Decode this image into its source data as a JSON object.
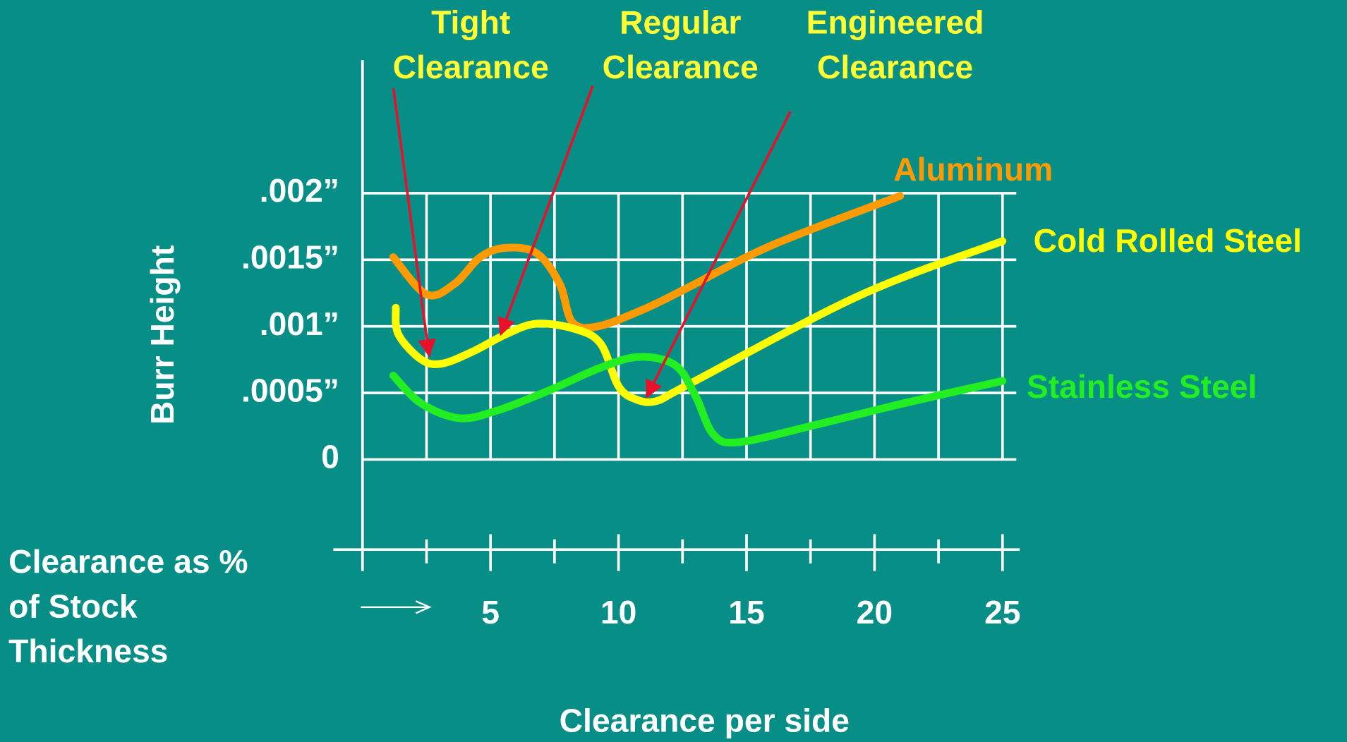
{
  "chart_data": {
    "type": "line",
    "y_label": "Burr Height",
    "x_label": "Clearance per side",
    "x_note_lines": [
      "Clearance as %",
      "of Stock",
      "Thickness"
    ],
    "annotations": [
      {
        "lines": [
          "Tight",
          "Clearance"
        ],
        "x": 2.6,
        "y": 0.00078
      },
      {
        "lines": [
          "Regular",
          "Clearance"
        ],
        "x": 5.4,
        "y": 0.00094
      },
      {
        "lines": [
          "Engineered",
          "Clearance"
        ],
        "x": 11.1,
        "y": 0.00047
      }
    ],
    "xlim": [
      0,
      25
    ],
    "xticks": [
      5,
      10,
      15,
      20,
      25
    ],
    "xminor_ticks": [
      2.5,
      7.5,
      12.5,
      17.5,
      22.5
    ],
    "ylim": [
      0,
      0.002
    ],
    "yticks": [
      {
        "value": 0,
        "label": "0"
      },
      {
        "value": 0.0005,
        "label": ".0005”"
      },
      {
        "value": 0.001,
        "label": ".001”"
      },
      {
        "value": 0.0015,
        "label": ".0015”"
      },
      {
        "value": 0.002,
        "label": ".002”"
      }
    ],
    "grid": true,
    "series": [
      {
        "name": "Aluminum",
        "color": "#ff9a00",
        "x": [
          1.2,
          2.5,
          3.6,
          4.6,
          5.6,
          6.8,
          7.7,
          8.2,
          9.2,
          11,
          12.7,
          16,
          21
        ],
        "values": [
          0.00152,
          0.00124,
          0.00132,
          0.00152,
          0.00159,
          0.00155,
          0.00132,
          0.00103,
          0.001,
          0.00113,
          0.00129,
          0.00161,
          0.00198
        ]
      },
      {
        "name": "Cold Rolled Steel",
        "color": "#ffff00",
        "x": [
          1.3,
          1.4,
          2.3,
          3.1,
          4.3,
          5.6,
          6.8,
          8.3,
          9.3,
          10,
          10.7,
          11.5,
          12.7,
          19.4,
          25
        ],
        "values": [
          0.00114,
          0.00094,
          0.00075,
          0.00072,
          0.00081,
          0.00094,
          0.00102,
          0.00098,
          0.00087,
          0.00055,
          0.00045,
          0.00044,
          0.00056,
          0.00123,
          0.00164
        ]
      },
      {
        "name": "Stainless Steel",
        "color": "#22ee22",
        "x": [
          1.2,
          2.3,
          3.8,
          5.3,
          7.3,
          9.3,
          10.8,
          12.2,
          13,
          13.7,
          14.7,
          17.7,
          21.1,
          25
        ],
        "values": [
          0.00063,
          0.00042,
          0.00031,
          0.00037,
          0.00052,
          0.00069,
          0.00077,
          0.00071,
          0.00048,
          0.00019,
          0.00013,
          0.00026,
          0.00042,
          0.00059
        ]
      }
    ]
  }
}
